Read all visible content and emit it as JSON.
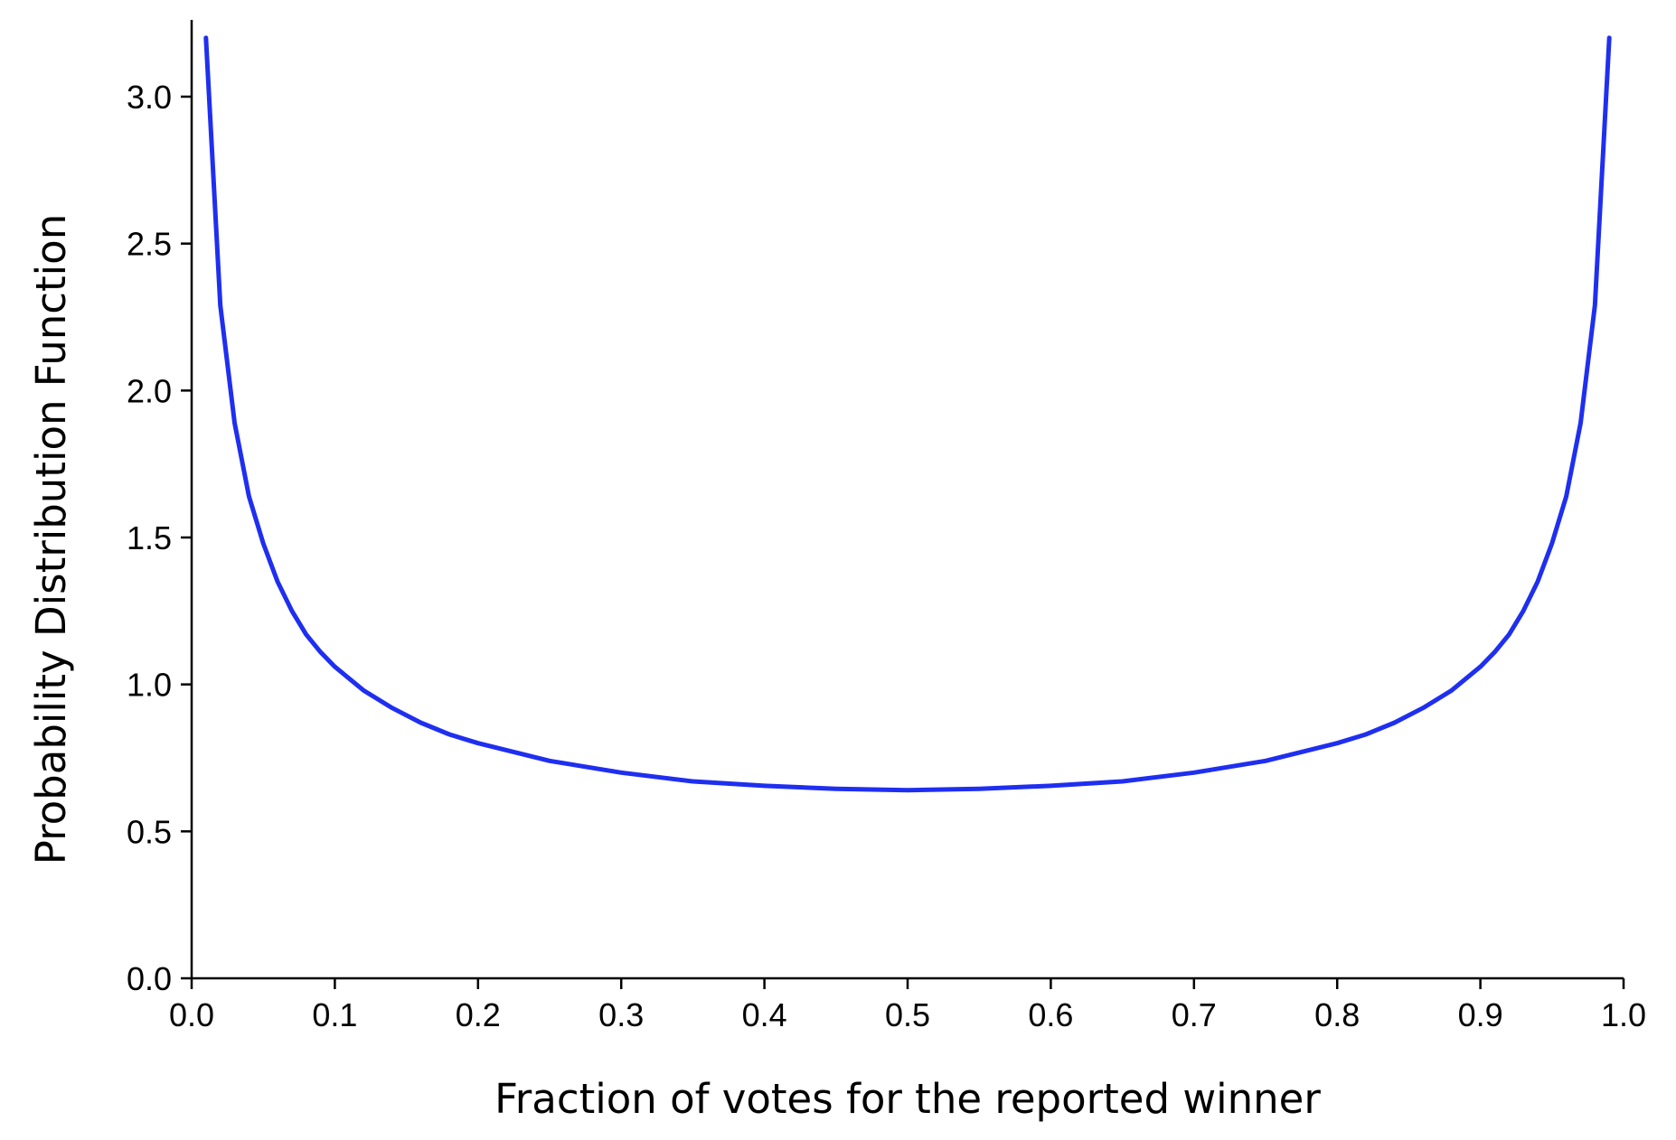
{
  "chart_data": {
    "type": "line",
    "xlabel": "Fraction of votes for the reported winner",
    "ylabel": "Probability Distribution Function",
    "xlim": [
      0.0,
      1.0
    ],
    "ylim": [
      0.0,
      3.2
    ],
    "x_ticks": [
      "0.0",
      "0.1",
      "0.2",
      "0.3",
      "0.4",
      "0.5",
      "0.6",
      "0.7",
      "0.8",
      "0.9",
      "1.0"
    ],
    "y_ticks": [
      "0.0",
      "0.5",
      "1.0",
      "1.5",
      "2.0",
      "2.5",
      "3.0"
    ],
    "grid": false,
    "series": [
      {
        "color": "#1f2ff0",
        "x": [
          0.01,
          0.02,
          0.03,
          0.04,
          0.05,
          0.06,
          0.07,
          0.08,
          0.09,
          0.1,
          0.12,
          0.14,
          0.16,
          0.18,
          0.2,
          0.25,
          0.3,
          0.35,
          0.4,
          0.45,
          0.5,
          0.55,
          0.6,
          0.65,
          0.7,
          0.75,
          0.8,
          0.82,
          0.84,
          0.86,
          0.88,
          0.9,
          0.91,
          0.92,
          0.93,
          0.94,
          0.95,
          0.96,
          0.97,
          0.98,
          0.99
        ],
        "y": [
          3.2,
          2.29,
          1.89,
          1.64,
          1.48,
          1.35,
          1.25,
          1.17,
          1.11,
          1.06,
          0.98,
          0.92,
          0.87,
          0.83,
          0.8,
          0.74,
          0.7,
          0.67,
          0.655,
          0.645,
          0.64,
          0.645,
          0.655,
          0.67,
          0.7,
          0.74,
          0.8,
          0.83,
          0.87,
          0.92,
          0.98,
          1.06,
          1.11,
          1.17,
          1.25,
          1.35,
          1.48,
          1.64,
          1.89,
          2.29,
          3.2
        ]
      }
    ]
  }
}
